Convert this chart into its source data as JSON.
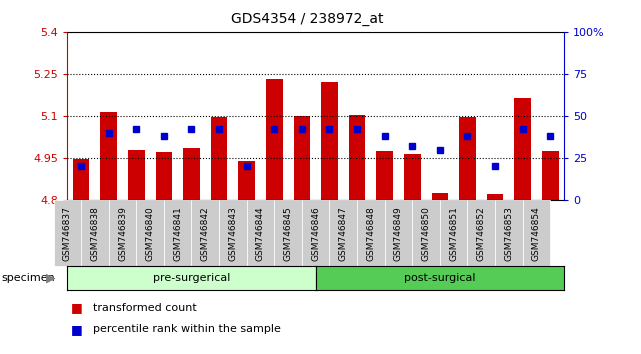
{
  "title": "GDS4354 / 238972_at",
  "samples": [
    "GSM746837",
    "GSM746838",
    "GSM746839",
    "GSM746840",
    "GSM746841",
    "GSM746842",
    "GSM746843",
    "GSM746844",
    "GSM746845",
    "GSM746846",
    "GSM746847",
    "GSM746848",
    "GSM746849",
    "GSM746850",
    "GSM746851",
    "GSM746852",
    "GSM746853",
    "GSM746854"
  ],
  "bar_values": [
    4.945,
    5.113,
    4.98,
    4.97,
    4.985,
    5.095,
    4.938,
    5.232,
    5.098,
    5.22,
    5.102,
    4.975,
    4.964,
    4.825,
    5.095,
    4.822,
    5.165,
    4.975
  ],
  "percentile_values": [
    20,
    40,
    42,
    38,
    42,
    42,
    20,
    42,
    42,
    42,
    42,
    38,
    32,
    30,
    38,
    20,
    42,
    38
  ],
  "ymin": 4.8,
  "ymax": 5.4,
  "yticks": [
    4.8,
    4.95,
    5.1,
    5.25,
    5.4
  ],
  "ytick_labels": [
    "4.8",
    "4.95",
    "5.1",
    "5.25",
    "5.4"
  ],
  "right_yticks": [
    0,
    25,
    50,
    75,
    100
  ],
  "right_ytick_labels": [
    "0",
    "25",
    "50",
    "75",
    "100%"
  ],
  "bar_color": "#cc0000",
  "dot_color": "#0000cc",
  "pre_surgical_count": 9,
  "post_surgical_count": 9,
  "pre_surgical_label": "pre-surgerical",
  "post_surgical_label": "post-surgical",
  "pre_surgical_color": "#ccffcc",
  "post_surgical_color": "#55cc55",
  "specimen_label": "specimen",
  "legend_bar_label": "transformed count",
  "legend_dot_label": "percentile rank within the sample",
  "axis_label_color_left": "#cc0000",
  "axis_label_color_right": "#0000cc",
  "background_color": "#ffffff",
  "plot_bg_color": "#ffffff",
  "xtick_bg_color": "#cccccc"
}
